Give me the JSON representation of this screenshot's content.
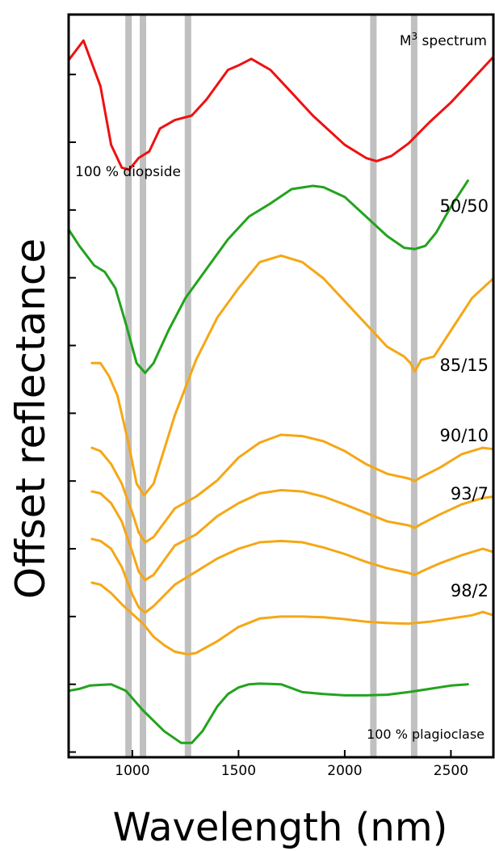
{
  "chart_data": {
    "type": "line",
    "xlabel": "Wavelength (nm)",
    "ylabel": "Offset reflectance",
    "xlim": [
      700,
      2700
    ],
    "xticks": [
      1000,
      1500,
      2000,
      2500
    ],
    "y_ticks_count": 11,
    "grid": false,
    "vertical_bands_nm": [
      982,
      1050,
      1262,
      2135,
      2327
    ],
    "band_color": "#c0c0c0",
    "series": [
      {
        "name": "M³ spectrum",
        "label_base": "M",
        "label_sup": "3",
        "label_rest": " spectrum",
        "color": "#ee1111",
        "offset": 9,
        "points": [
          [
            700,
            10.7
          ],
          [
            770,
            11.0
          ],
          [
            850,
            10.3
          ],
          [
            900,
            9.4
          ],
          [
            950,
            9.05
          ],
          [
            985,
            9.02
          ],
          [
            1030,
            9.2
          ],
          [
            1080,
            9.3
          ],
          [
            1130,
            9.65
          ],
          [
            1200,
            9.78
          ],
          [
            1280,
            9.85
          ],
          [
            1350,
            10.1
          ],
          [
            1450,
            10.55
          ],
          [
            1500,
            10.62
          ],
          [
            1560,
            10.72
          ],
          [
            1650,
            10.55
          ],
          [
            1750,
            10.2
          ],
          [
            1850,
            9.85
          ],
          [
            2000,
            9.4
          ],
          [
            2100,
            9.2
          ],
          [
            2150,
            9.15
          ],
          [
            2220,
            9.23
          ],
          [
            2300,
            9.42
          ],
          [
            2400,
            9.75
          ],
          [
            2500,
            10.05
          ],
          [
            2600,
            10.4
          ],
          [
            2700,
            10.75
          ]
        ]
      },
      {
        "name": "100 % diopside",
        "label": "100 % diopside",
        "color": "#23a31e",
        "offset": 7,
        "points": [
          [
            700,
            8.1
          ],
          [
            750,
            7.85
          ],
          [
            820,
            7.55
          ],
          [
            870,
            7.45
          ],
          [
            920,
            7.2
          ],
          [
            970,
            6.65
          ],
          [
            1020,
            6.05
          ],
          [
            1060,
            5.9
          ],
          [
            1100,
            6.05
          ],
          [
            1170,
            6.55
          ],
          [
            1250,
            7.05
          ],
          [
            1350,
            7.5
          ],
          [
            1450,
            7.95
          ],
          [
            1550,
            8.3
          ],
          [
            1650,
            8.5
          ],
          [
            1750,
            8.72
          ],
          [
            1850,
            8.77
          ],
          [
            1900,
            8.75
          ],
          [
            2000,
            8.6
          ],
          [
            2100,
            8.3
          ],
          [
            2200,
            8.0
          ],
          [
            2280,
            7.82
          ],
          [
            2330,
            7.8
          ],
          [
            2380,
            7.85
          ],
          [
            2430,
            8.05
          ],
          [
            2500,
            8.45
          ],
          [
            2580,
            8.85
          ]
        ]
      },
      {
        "name": "50/50",
        "label": "50/50",
        "color": "#f5a716",
        "offset": 6,
        "points": [
          [
            810,
            6.05
          ],
          [
            850,
            6.05
          ],
          [
            890,
            5.85
          ],
          [
            930,
            5.55
          ],
          [
            980,
            4.85
          ],
          [
            1020,
            4.2
          ],
          [
            1055,
            4.02
          ],
          [
            1100,
            4.2
          ],
          [
            1200,
            5.25
          ],
          [
            1300,
            6.1
          ],
          [
            1400,
            6.75
          ],
          [
            1500,
            7.2
          ],
          [
            1600,
            7.6
          ],
          [
            1700,
            7.7
          ],
          [
            1800,
            7.6
          ],
          [
            1900,
            7.35
          ],
          [
            2000,
            7.0
          ],
          [
            2100,
            6.65
          ],
          [
            2200,
            6.3
          ],
          [
            2280,
            6.15
          ],
          [
            2310,
            6.05
          ],
          [
            2330,
            5.92
          ],
          [
            2360,
            6.1
          ],
          [
            2420,
            6.15
          ],
          [
            2500,
            6.55
          ],
          [
            2600,
            7.05
          ],
          [
            2700,
            7.35
          ]
        ]
      },
      {
        "name": "85/15",
        "label": "85/15",
        "color": "#f5a716",
        "offset": 4.5,
        "points": [
          [
            810,
            4.75
          ],
          [
            850,
            4.7
          ],
          [
            900,
            4.5
          ],
          [
            950,
            4.2
          ],
          [
            1000,
            3.75
          ],
          [
            1030,
            3.45
          ],
          [
            1060,
            3.3
          ],
          [
            1100,
            3.38
          ],
          [
            1200,
            3.82
          ],
          [
            1300,
            4.0
          ],
          [
            1400,
            4.25
          ],
          [
            1500,
            4.6
          ],
          [
            1600,
            4.83
          ],
          [
            1700,
            4.95
          ],
          [
            1800,
            4.93
          ],
          [
            1900,
            4.85
          ],
          [
            2000,
            4.7
          ],
          [
            2100,
            4.5
          ],
          [
            2200,
            4.35
          ],
          [
            2300,
            4.28
          ],
          [
            2330,
            4.24
          ],
          [
            2360,
            4.3
          ],
          [
            2450,
            4.45
          ],
          [
            2550,
            4.65
          ],
          [
            2650,
            4.75
          ],
          [
            2700,
            4.73
          ]
        ]
      },
      {
        "name": "90/10",
        "label": "90/10",
        "color": "#f5a716",
        "offset": 3.6,
        "points": [
          [
            810,
            4.08
          ],
          [
            850,
            4.05
          ],
          [
            900,
            3.9
          ],
          [
            950,
            3.62
          ],
          [
            1000,
            3.15
          ],
          [
            1030,
            2.85
          ],
          [
            1060,
            2.72
          ],
          [
            1100,
            2.8
          ],
          [
            1200,
            3.25
          ],
          [
            1300,
            3.42
          ],
          [
            1400,
            3.7
          ],
          [
            1500,
            3.9
          ],
          [
            1600,
            4.05
          ],
          [
            1700,
            4.1
          ],
          [
            1800,
            4.08
          ],
          [
            1900,
            4.0
          ],
          [
            2000,
            3.88
          ],
          [
            2100,
            3.75
          ],
          [
            2200,
            3.62
          ],
          [
            2300,
            3.56
          ],
          [
            2330,
            3.52
          ],
          [
            2360,
            3.58
          ],
          [
            2450,
            3.73
          ],
          [
            2550,
            3.88
          ],
          [
            2650,
            3.98
          ],
          [
            2700,
            4.0
          ]
        ]
      },
      {
        "name": "93/7",
        "label": "93/7",
        "color": "#f5a716",
        "offset": 2.8,
        "points": [
          [
            810,
            3.35
          ],
          [
            850,
            3.32
          ],
          [
            900,
            3.2
          ],
          [
            950,
            2.92
          ],
          [
            1000,
            2.5
          ],
          [
            1030,
            2.3
          ],
          [
            1060,
            2.22
          ],
          [
            1100,
            2.32
          ],
          [
            1200,
            2.65
          ],
          [
            1300,
            2.85
          ],
          [
            1400,
            3.05
          ],
          [
            1500,
            3.2
          ],
          [
            1600,
            3.3
          ],
          [
            1700,
            3.32
          ],
          [
            1800,
            3.3
          ],
          [
            1900,
            3.22
          ],
          [
            2000,
            3.12
          ],
          [
            2100,
            3.0
          ],
          [
            2200,
            2.9
          ],
          [
            2300,
            2.83
          ],
          [
            2330,
            2.8
          ],
          [
            2360,
            2.85
          ],
          [
            2450,
            2.98
          ],
          [
            2550,
            3.1
          ],
          [
            2650,
            3.2
          ],
          [
            2700,
            3.15
          ]
        ]
      },
      {
        "name": "98/2",
        "label": "98/2",
        "color": "#f5a716",
        "offset": 2.0,
        "points": [
          [
            810,
            2.68
          ],
          [
            850,
            2.65
          ],
          [
            900,
            2.52
          ],
          [
            950,
            2.35
          ],
          [
            1000,
            2.2
          ],
          [
            1050,
            2.05
          ],
          [
            1100,
            1.85
          ],
          [
            1150,
            1.72
          ],
          [
            1200,
            1.62
          ],
          [
            1260,
            1.58
          ],
          [
            1300,
            1.6
          ],
          [
            1400,
            1.78
          ],
          [
            1500,
            2.0
          ],
          [
            1600,
            2.13
          ],
          [
            1700,
            2.16
          ],
          [
            1800,
            2.16
          ],
          [
            1900,
            2.15
          ],
          [
            2000,
            2.12
          ],
          [
            2100,
            2.08
          ],
          [
            2200,
            2.06
          ],
          [
            2300,
            2.05
          ],
          [
            2400,
            2.08
          ],
          [
            2500,
            2.13
          ],
          [
            2600,
            2.18
          ],
          [
            2650,
            2.23
          ],
          [
            2700,
            2.18
          ]
        ]
      },
      {
        "name": "100 % plagioclase",
        "label": "100 % plagioclase",
        "color": "#23a31e",
        "offset": 0.5,
        "points": [
          [
            700,
            1.02
          ],
          [
            750,
            1.05
          ],
          [
            800,
            1.1
          ],
          [
            900,
            1.12
          ],
          [
            970,
            1.02
          ],
          [
            1050,
            0.72
          ],
          [
            1150,
            0.4
          ],
          [
            1230,
            0.22
          ],
          [
            1280,
            0.22
          ],
          [
            1330,
            0.4
          ],
          [
            1400,
            0.78
          ],
          [
            1450,
            0.97
          ],
          [
            1500,
            1.07
          ],
          [
            1550,
            1.12
          ],
          [
            1600,
            1.13
          ],
          [
            1700,
            1.12
          ],
          [
            1800,
            1.0
          ],
          [
            1900,
            0.97
          ],
          [
            2000,
            0.95
          ],
          [
            2100,
            0.95
          ],
          [
            2200,
            0.96
          ],
          [
            2300,
            1.0
          ],
          [
            2400,
            1.05
          ],
          [
            2500,
            1.1
          ],
          [
            2580,
            1.12
          ]
        ]
      }
    ]
  }
}
